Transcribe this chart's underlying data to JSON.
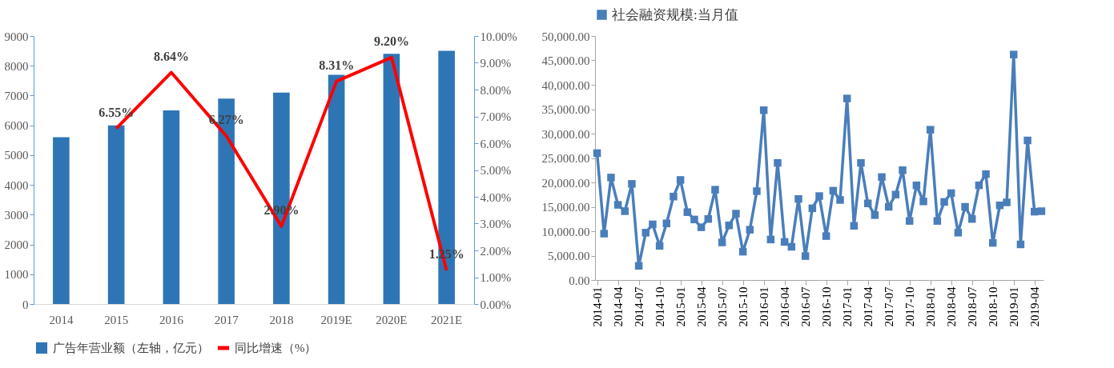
{
  "chart_data": [
    {
      "type": "bar",
      "categories": [
        "2014",
        "2015",
        "2016",
        "2017",
        "2018",
        "2019E",
        "2020E",
        "2021E"
      ],
      "series": [
        {
          "name": "广告年营业额（左轴，亿元）",
          "type": "bar",
          "color": "#2e75b6",
          "values": [
            5600,
            6000,
            6500,
            6900,
            7100,
            7700,
            8400,
            8500
          ]
        },
        {
          "name": "同比增速（%）",
          "type": "line",
          "axis": "y2",
          "color": "#ff0000",
          "values": [
            null,
            6.55,
            8.64,
            6.27,
            2.9,
            8.31,
            9.2,
            1.25
          ],
          "value_labels": [
            null,
            "6.55%",
            "8.64%",
            "6.27%",
            "2.90%",
            "8.31%",
            "9.20%",
            "1.25%"
          ]
        }
      ],
      "ylim": [
        0,
        9000
      ],
      "yticks": [
        0,
        1000,
        2000,
        3000,
        4000,
        5000,
        6000,
        7000,
        8000,
        9000
      ],
      "y2lim": [
        0,
        10
      ],
      "y2ticks": [
        {
          "value": 0,
          "label": "0.00%"
        },
        {
          "value": 1,
          "label": "1.00%"
        },
        {
          "value": 2,
          "label": "2.00%"
        },
        {
          "value": 3,
          "label": "3.00%"
        },
        {
          "value": 4,
          "label": "4.00%"
        },
        {
          "value": 5,
          "label": "5.00%"
        },
        {
          "value": 6,
          "label": "6.00%"
        },
        {
          "value": 7,
          "label": "7.00%"
        },
        {
          "value": 8,
          "label": "8.00%"
        },
        {
          "value": 9,
          "label": "9.00%"
        },
        {
          "value": 10,
          "label": "10.00%"
        }
      ],
      "legend": "bottom",
      "grid": false
    },
    {
      "type": "line",
      "categories": [
        "2014-01",
        null,
        null,
        "2014-04",
        null,
        null,
        "2014-07",
        null,
        null,
        "2014-10",
        null,
        null,
        "2015-01",
        null,
        null,
        "2015-04",
        null,
        null,
        "2015-07",
        null,
        null,
        "2015-10",
        null,
        null,
        "2016-01",
        null,
        null,
        "2016-04",
        null,
        null,
        "2016-07",
        null,
        null,
        "2016-10",
        null,
        null,
        "2017-01",
        null,
        null,
        "2017-04",
        null,
        null,
        "2017-07",
        null,
        null,
        "2017-10",
        null,
        null,
        "2018-01",
        null,
        null,
        "2018-04",
        null,
        null,
        "2018-07",
        null,
        null,
        "2018-10",
        null,
        null,
        "2019-01",
        null,
        null,
        "2019-04",
        null
      ],
      "series": [
        {
          "name": "社会融资规模:当月值",
          "color": "#4a7ebb",
          "values": [
            26000,
            9500,
            21000,
            15400,
            14100,
            19700,
            2900,
            9700,
            11400,
            7000,
            11600,
            17100,
            20500,
            13900,
            12400,
            10800,
            12500,
            18500,
            7700,
            11200,
            13600,
            5800,
            10300,
            18200,
            34800,
            8300,
            24000,
            7800,
            6800,
            16600,
            4900,
            14700,
            17200,
            9000,
            18300,
            16400,
            37200,
            11100,
            24000,
            15700,
            13300,
            21100,
            15000,
            17500,
            22500,
            12100,
            19400,
            16100,
            30800,
            12100,
            16000,
            17800,
            9700,
            15000,
            12500,
            19400,
            21700,
            7600,
            15300,
            15900,
            46200,
            7300,
            28600,
            14000,
            14100
          ]
        }
      ],
      "ylim": [
        0,
        50000
      ],
      "yticks": [
        {
          "value": 0,
          "label": "0.00"
        },
        {
          "value": 5000,
          "label": "5,000.00"
        },
        {
          "value": 10000,
          "label": "10,000.00"
        },
        {
          "value": 15000,
          "label": "15,000.00"
        },
        {
          "value": 20000,
          "label": "20,000.00"
        },
        {
          "value": 25000,
          "label": "25,000.00"
        },
        {
          "value": 30000,
          "label": "30,000.00"
        },
        {
          "value": 35000,
          "label": "35,000.00"
        },
        {
          "value": 40000,
          "label": "40,000.00"
        },
        {
          "value": 45000,
          "label": "45,000.00"
        },
        {
          "value": 50000,
          "label": "50,000.00"
        }
      ],
      "marker": "square",
      "legend": "top",
      "grid": false
    }
  ]
}
